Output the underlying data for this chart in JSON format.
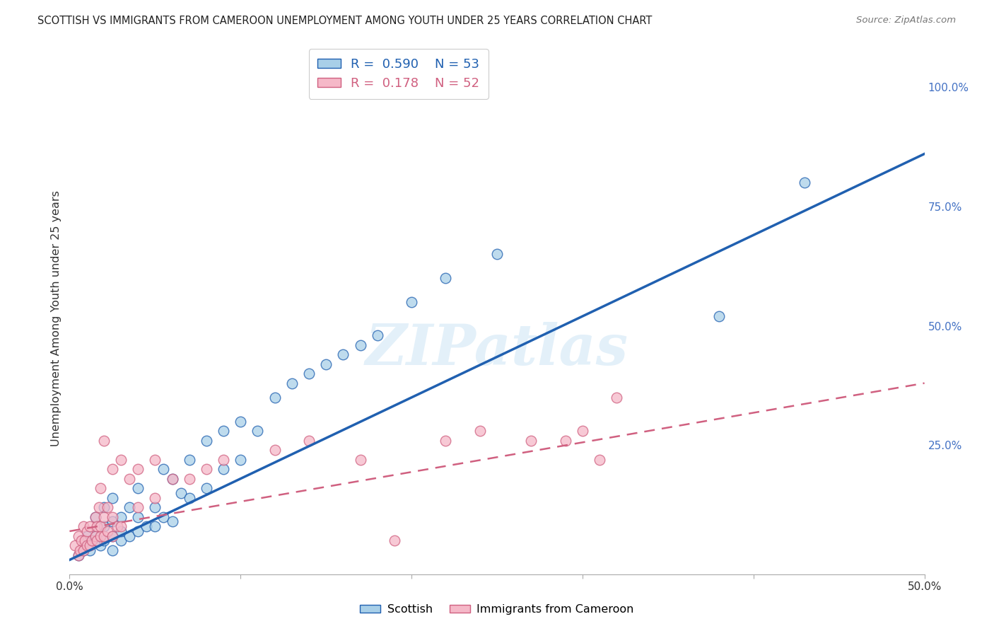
{
  "title": "SCOTTISH VS IMMIGRANTS FROM CAMEROON UNEMPLOYMENT AMONG YOUTH UNDER 25 YEARS CORRELATION CHART",
  "source": "Source: ZipAtlas.com",
  "ylabel": "Unemployment Among Youth under 25 years",
  "xlim": [
    0.0,
    0.5
  ],
  "ylim": [
    -0.02,
    1.05
  ],
  "yticks_right": [
    0.0,
    0.25,
    0.5,
    0.75,
    1.0
  ],
  "ytick_labels_right": [
    "",
    "25.0%",
    "50.0%",
    "75.0%",
    "100.0%"
  ],
  "blue_R": 0.59,
  "blue_N": 53,
  "pink_R": 0.178,
  "pink_N": 52,
  "blue_color": "#a8cfe8",
  "pink_color": "#f5b8c8",
  "blue_line_color": "#2060b0",
  "pink_line_color": "#d06080",
  "watermark": "ZIPatlas",
  "blue_scatter_x": [
    0.005,
    0.008,
    0.01,
    0.01,
    0.012,
    0.015,
    0.015,
    0.015,
    0.018,
    0.02,
    0.02,
    0.02,
    0.025,
    0.025,
    0.025,
    0.025,
    0.03,
    0.03,
    0.03,
    0.035,
    0.035,
    0.04,
    0.04,
    0.04,
    0.045,
    0.05,
    0.05,
    0.055,
    0.055,
    0.06,
    0.06,
    0.065,
    0.07,
    0.07,
    0.08,
    0.08,
    0.09,
    0.09,
    0.1,
    0.1,
    0.11,
    0.12,
    0.13,
    0.14,
    0.15,
    0.16,
    0.17,
    0.18,
    0.2,
    0.22,
    0.25,
    0.38,
    0.43
  ],
  "blue_scatter_y": [
    0.02,
    0.03,
    0.04,
    0.06,
    0.03,
    0.05,
    0.06,
    0.1,
    0.04,
    0.05,
    0.08,
    0.12,
    0.03,
    0.06,
    0.09,
    0.14,
    0.05,
    0.07,
    0.1,
    0.06,
    0.12,
    0.07,
    0.1,
    0.16,
    0.08,
    0.08,
    0.12,
    0.1,
    0.2,
    0.09,
    0.18,
    0.15,
    0.14,
    0.22,
    0.16,
    0.26,
    0.2,
    0.28,
    0.22,
    0.3,
    0.28,
    0.35,
    0.38,
    0.4,
    0.42,
    0.44,
    0.46,
    0.48,
    0.55,
    0.6,
    0.65,
    0.52,
    0.8
  ],
  "pink_scatter_x": [
    0.003,
    0.005,
    0.005,
    0.006,
    0.007,
    0.008,
    0.008,
    0.009,
    0.01,
    0.01,
    0.012,
    0.012,
    0.013,
    0.015,
    0.015,
    0.016,
    0.016,
    0.017,
    0.018,
    0.018,
    0.018,
    0.02,
    0.02,
    0.02,
    0.022,
    0.022,
    0.025,
    0.025,
    0.025,
    0.028,
    0.03,
    0.03,
    0.035,
    0.04,
    0.04,
    0.05,
    0.05,
    0.06,
    0.07,
    0.08,
    0.09,
    0.12,
    0.14,
    0.17,
    0.19,
    0.22,
    0.24,
    0.27,
    0.29,
    0.3,
    0.31,
    0.32
  ],
  "pink_scatter_y": [
    0.04,
    0.02,
    0.06,
    0.03,
    0.05,
    0.03,
    0.08,
    0.05,
    0.04,
    0.07,
    0.04,
    0.08,
    0.05,
    0.06,
    0.1,
    0.05,
    0.08,
    0.12,
    0.06,
    0.08,
    0.16,
    0.06,
    0.1,
    0.26,
    0.07,
    0.12,
    0.06,
    0.1,
    0.2,
    0.08,
    0.08,
    0.22,
    0.18,
    0.12,
    0.2,
    0.14,
    0.22,
    0.18,
    0.18,
    0.2,
    0.22,
    0.24,
    0.26,
    0.22,
    0.05,
    0.26,
    0.28,
    0.26,
    0.26,
    0.28,
    0.22,
    0.35
  ],
  "blue_line_x0": 0.0,
  "blue_line_y0": 0.01,
  "blue_line_x1": 0.5,
  "blue_line_y1": 0.86,
  "pink_line_x0": 0.0,
  "pink_line_y0": 0.07,
  "pink_line_x1": 0.5,
  "pink_line_y1": 0.38
}
